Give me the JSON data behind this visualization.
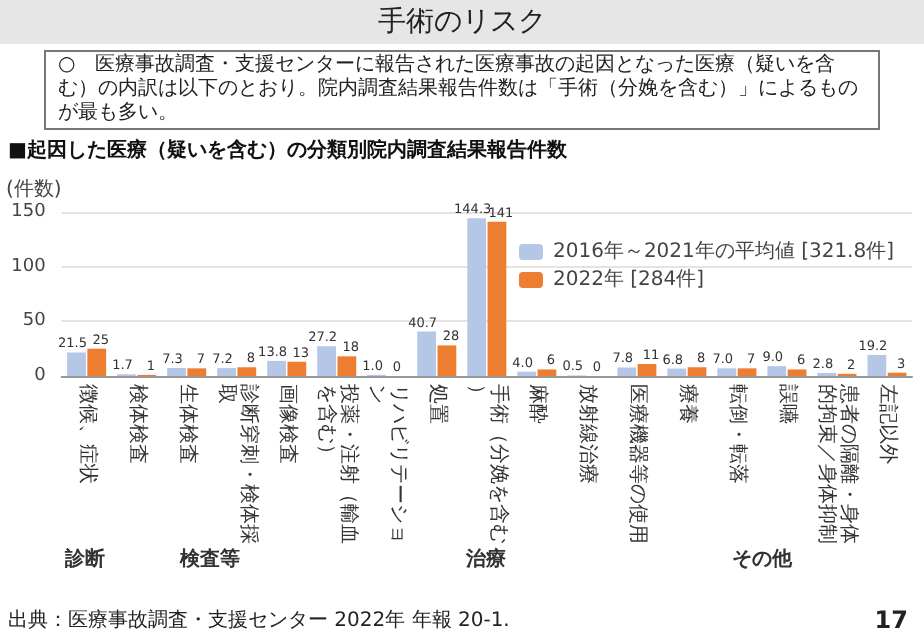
{
  "chart_data": {
    "type": "bar",
    "title": "手術のリスク",
    "subtitle": "○　医療事故調査・支援センターに報告された医療事故の起因となった医療（疑いを含む）の内訳は以下のとおり。院内調査結果報告件数は「手術（分娩を含む）」によるものが最も多い。",
    "ylabel": "(件数)",
    "categories": [
      "徴候、症状",
      "検体検査",
      "生体検査",
      "診断穿刺・検体採取",
      "画像検査",
      "投薬・注射（輸血を含む）",
      "リハビリテーション",
      "処置",
      "手術（分娩を含む）",
      "麻酔",
      "放射線治療",
      "医療機器等の使用",
      "療養",
      "転倒・転落",
      "誤嚥",
      "患者の隔離・身体的拘束／身体抑制",
      "左記以外"
    ],
    "series": [
      {
        "name": "2016年～2021年の平均値 [321.8件]",
        "color": "#b4c7e7",
        "values": [
          21.5,
          1.7,
          7.3,
          7.2,
          13.8,
          27.2,
          1.0,
          40.7,
          144.3,
          4.0,
          0.5,
          7.8,
          6.8,
          7.0,
          9.0,
          2.8,
          19.2
        ],
        "value_labels": [
          "21.5",
          "1.7",
          "7.3",
          "7.2",
          "13.8",
          "27.2",
          "1.0",
          "40.7",
          "144.3",
          "4.0",
          "0.5",
          "7.8",
          "6.8",
          "7.0",
          "9.0",
          "2.8",
          "19.2"
        ]
      },
      {
        "name": "2022年 [284件]",
        "color": "#ed7d31",
        "values": [
          25,
          1,
          7,
          8,
          13,
          18,
          0,
          28,
          141,
          6,
          0,
          11,
          8,
          7,
          6,
          2,
          3
        ],
        "value_labels": [
          "25",
          "1",
          "7",
          "8",
          "13",
          "18",
          "0",
          "28",
          "141",
          "6",
          "0",
          "11",
          "8",
          "7",
          "6",
          "2",
          "3"
        ]
      }
    ],
    "ylim": [
      0,
      150
    ],
    "yticks": [
      0,
      50,
      100,
      150
    ],
    "grid": "y",
    "legend": "top right",
    "annotations": [
      "■起因した医療（疑いを含む）の分類別院内調査結果報告件数",
      "診断",
      "検査等",
      "治療",
      "その他",
      "出典：医療事故調査・支援センター 2022年 年報 20-1.",
      "17"
    ]
  }
}
